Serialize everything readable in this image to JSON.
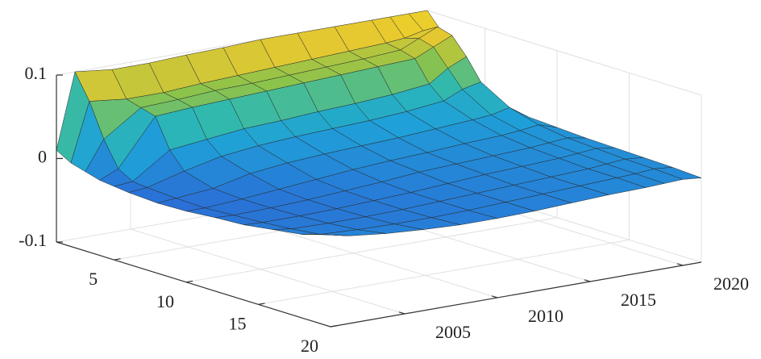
{
  "chart_data": {
    "type": "surface",
    "x": [
      2001,
      2002,
      2004,
      2006,
      2008,
      2010,
      2012,
      2014,
      2016,
      2018,
      2019,
      2020,
      2021
    ],
    "y": [
      1,
      2,
      3,
      4,
      5,
      6,
      8,
      10,
      12,
      14,
      16,
      18,
      20
    ],
    "z": [
      [
        0.01,
        0.1,
        0.095,
        0.095,
        0.097,
        0.098,
        0.1,
        0.1,
        0.1,
        0.1,
        0.1,
        0.1,
        0.1
      ],
      [
        0.0,
        0.07,
        0.065,
        0.065,
        0.068,
        0.07,
        0.072,
        0.074,
        0.076,
        0.078,
        0.08,
        0.085,
        0.08
      ],
      [
        -0.005,
        0.03,
        0.06,
        0.062,
        0.065,
        0.066,
        0.068,
        0.07,
        0.072,
        0.075,
        0.085,
        0.095,
        0.06
      ],
      [
        -0.01,
        0.0,
        0.055,
        0.058,
        0.06,
        0.062,
        0.064,
        0.066,
        0.068,
        0.07,
        0.08,
        0.09,
        0.03
      ],
      [
        -0.012,
        -0.01,
        0.02,
        0.025,
        0.03,
        0.032,
        0.035,
        0.037,
        0.04,
        0.045,
        0.06,
        0.07,
        0.02
      ],
      [
        -0.014,
        -0.012,
        0.0,
        0.01,
        0.015,
        0.018,
        0.02,
        0.022,
        0.025,
        0.03,
        0.04,
        0.045,
        0.015
      ],
      [
        -0.016,
        -0.014,
        -0.01,
        0.0,
        0.005,
        0.008,
        0.01,
        0.012,
        0.015,
        0.018,
        0.02,
        0.025,
        0.01
      ],
      [
        -0.015,
        -0.015,
        -0.012,
        -0.008,
        -0.004,
        0.0,
        0.003,
        0.005,
        0.008,
        0.01,
        0.012,
        0.015,
        0.008
      ],
      [
        -0.012,
        -0.013,
        -0.012,
        -0.01,
        -0.007,
        -0.004,
        0.0,
        0.002,
        0.004,
        0.006,
        0.008,
        0.01,
        0.006
      ],
      [
        -0.01,
        -0.011,
        -0.011,
        -0.01,
        -0.008,
        -0.006,
        -0.003,
        0.0,
        0.002,
        0.004,
        0.006,
        0.008,
        0.005
      ],
      [
        -0.005,
        -0.008,
        -0.009,
        -0.009,
        -0.008,
        -0.006,
        -0.004,
        -0.002,
        0.0,
        0.002,
        0.004,
        0.006,
        0.004
      ],
      [
        0.0,
        -0.004,
        -0.006,
        -0.007,
        -0.007,
        -0.006,
        -0.004,
        -0.002,
        0.0,
        0.002,
        0.003,
        0.005,
        0.003
      ],
      [
        0.01,
        0.005,
        0.0,
        -0.003,
        -0.005,
        -0.005,
        -0.004,
        -0.002,
        0.0,
        0.001,
        0.002,
        0.003,
        0.001
      ]
    ],
    "xlim": [
      2001,
      2021
    ],
    "ylim": [
      1,
      20
    ],
    "zlim": [
      -0.1,
      0.1
    ],
    "xticks": [
      2005,
      2010,
      2015,
      2020
    ],
    "yticks": [
      5,
      10,
      15,
      20
    ],
    "zticks": [
      -0.1,
      0,
      0.1
    ],
    "grid": true,
    "colormap": "parula",
    "edgecolor": "#2a2a2a"
  }
}
